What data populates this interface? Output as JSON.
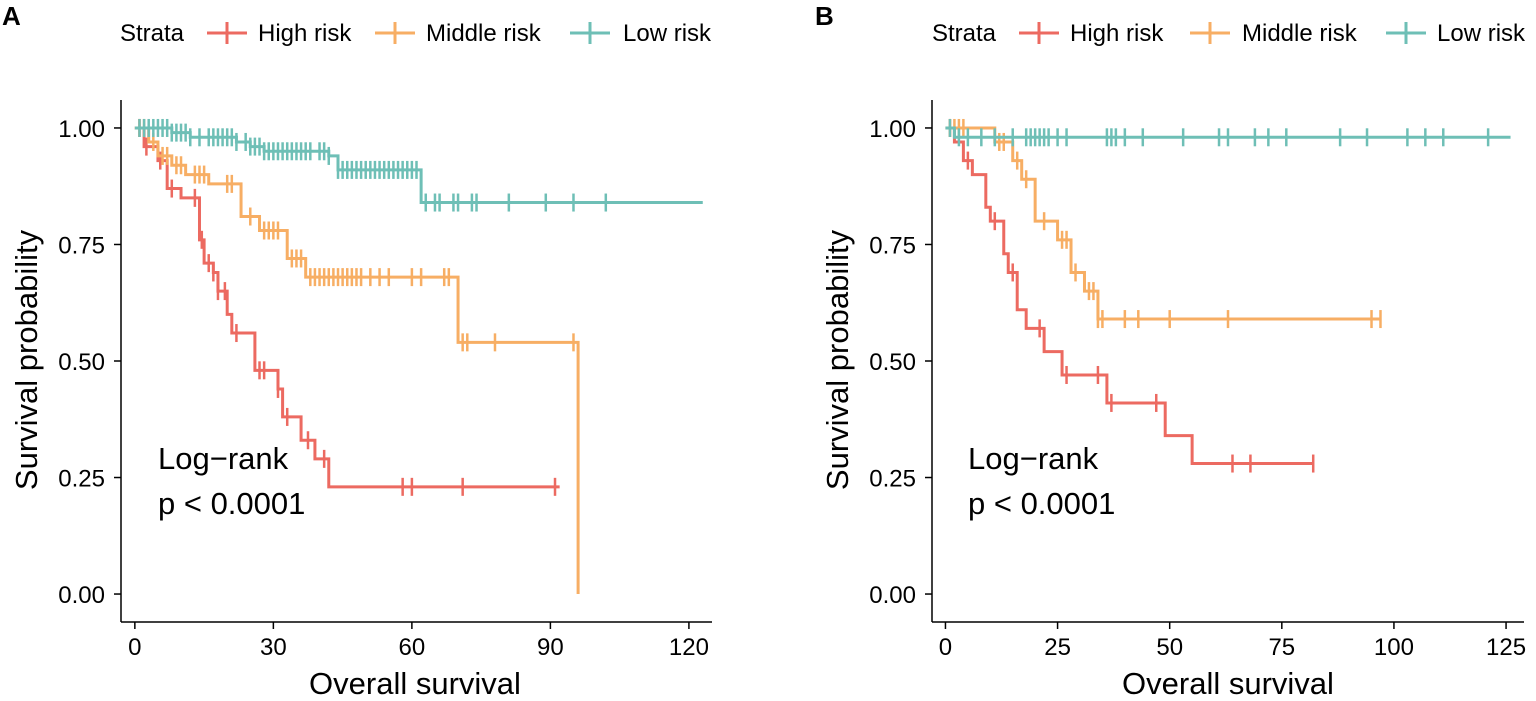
{
  "figure": {
    "panels": [
      "A",
      "B"
    ]
  },
  "colors": {
    "high": "#ec6a61",
    "middle": "#f7ae64",
    "low": "#6ebfb6",
    "axis": "#000000"
  },
  "chart_data": [
    {
      "type": "line",
      "panel_label": "A",
      "legend_title": "Strata",
      "xlabel": "Overall survival",
      "ylabel": "Survival probability",
      "xlim": [
        -3,
        125
      ],
      "ylim": [
        -0.06,
        1.06
      ],
      "xticks": [
        0,
        30,
        60,
        90,
        120
      ],
      "yticks": [
        0,
        0.25,
        0.5,
        0.75,
        1
      ],
      "ytick_labels": [
        "0.00",
        "0.25",
        "0.50",
        "0.75",
        "1.00"
      ],
      "annotation": [
        "Log−rank",
        "p < 0.0001"
      ],
      "series": [
        {
          "name": "High risk",
          "color_key": "high",
          "steps": [
            [
              0,
              1.0
            ],
            [
              2,
              0.96
            ],
            [
              5,
              0.93
            ],
            [
              7,
              0.87
            ],
            [
              10,
              0.85
            ],
            [
              14,
              0.76
            ],
            [
              15,
              0.71
            ],
            [
              17,
              0.69
            ],
            [
              18,
              0.65
            ],
            [
              20,
              0.6
            ],
            [
              21,
              0.56
            ],
            [
              26,
              0.48
            ],
            [
              31,
              0.44
            ],
            [
              32,
              0.38
            ],
            [
              36,
              0.33
            ],
            [
              39,
              0.29
            ],
            [
              42,
              0.23
            ],
            [
              92,
              0.23
            ]
          ],
          "censor_x": [
            1,
            2.5,
            5.5,
            8,
            13,
            14.5,
            16,
            17,
            18,
            19.5,
            22,
            27,
            28,
            31,
            33,
            37.5,
            41,
            58,
            60,
            71,
            91
          ]
        },
        {
          "name": "Middle risk",
          "color_key": "middle",
          "steps": [
            [
              0,
              1.0
            ],
            [
              3,
              0.97
            ],
            [
              5,
              0.94
            ],
            [
              8,
              0.92
            ],
            [
              11,
              0.9
            ],
            [
              16,
              0.88
            ],
            [
              23,
              0.81
            ],
            [
              27,
              0.78
            ],
            [
              33,
              0.72
            ],
            [
              37,
              0.68
            ],
            [
              70,
              0.54
            ],
            [
              96,
              0.54
            ],
            [
              96,
              0.0
            ]
          ],
          "censor_x": [
            1,
            2,
            4,
            6,
            7,
            9,
            10,
            13,
            14,
            15,
            20,
            21,
            25,
            28,
            29,
            30,
            31,
            34,
            35,
            36,
            38,
            39,
            40,
            41,
            42,
            43,
            44,
            45,
            46,
            47,
            48,
            49,
            51,
            53,
            55,
            60,
            62,
            67,
            68,
            71,
            72,
            78,
            95
          ]
        },
        {
          "name": "Low risk",
          "color_key": "low",
          "steps": [
            [
              0,
              1.0
            ],
            [
              8,
              0.99
            ],
            [
              12,
              0.98
            ],
            [
              22,
              0.97
            ],
            [
              25,
              0.96
            ],
            [
              28,
              0.95
            ],
            [
              42,
              0.94
            ],
            [
              44,
              0.91
            ],
            [
              62,
              0.84
            ],
            [
              123,
              0.84
            ]
          ],
          "censor_x": [
            1,
            2,
            3,
            4,
            5,
            6,
            7,
            8,
            9,
            10,
            11,
            12,
            14,
            16,
            17,
            18,
            19,
            20,
            21,
            22,
            24,
            25,
            26,
            27,
            28,
            29,
            30,
            31,
            32,
            33,
            34,
            35,
            36,
            37,
            38,
            40,
            41,
            42,
            44,
            45,
            46,
            47,
            48,
            49,
            50,
            51,
            52,
            53,
            54,
            55,
            56,
            57,
            58,
            59,
            60,
            61,
            63,
            65,
            66,
            69,
            70,
            73,
            74,
            81,
            89,
            95,
            102
          ]
        }
      ]
    },
    {
      "type": "line",
      "panel_label": "B",
      "legend_title": "Strata",
      "xlabel": "Overall survival",
      "ylabel": "Survival probability",
      "xlim": [
        -3,
        129
      ],
      "ylim": [
        -0.06,
        1.06
      ],
      "xticks": [
        0,
        25,
        50,
        75,
        100,
        125
      ],
      "yticks": [
        0,
        0.25,
        0.5,
        0.75,
        1
      ],
      "ytick_labels": [
        "0.00",
        "0.25",
        "0.50",
        "0.75",
        "1.00"
      ],
      "annotation": [
        "Log−rank",
        "p < 0.0001"
      ],
      "series": [
        {
          "name": "High risk",
          "color_key": "high",
          "steps": [
            [
              0,
              1.0
            ],
            [
              2,
              0.97
            ],
            [
              4,
              0.93
            ],
            [
              6,
              0.9
            ],
            [
              9,
              0.83
            ],
            [
              10,
              0.8
            ],
            [
              13,
              0.73
            ],
            [
              14,
              0.69
            ],
            [
              16,
              0.61
            ],
            [
              18,
              0.57
            ],
            [
              22,
              0.52
            ],
            [
              26,
              0.47
            ],
            [
              36,
              0.41
            ],
            [
              49,
              0.34
            ],
            [
              55,
              0.28
            ],
            [
              82,
              0.28
            ]
          ],
          "censor_x": [
            1,
            5,
            11,
            15,
            21,
            27,
            34,
            37,
            47,
            64,
            68,
            82
          ]
        },
        {
          "name": "Middle risk",
          "color_key": "middle",
          "steps": [
            [
              0,
              1.0
            ],
            [
              11,
              0.97
            ],
            [
              15,
              0.93
            ],
            [
              17,
              0.89
            ],
            [
              20,
              0.8
            ],
            [
              25,
              0.76
            ],
            [
              28,
              0.69
            ],
            [
              31,
              0.65
            ],
            [
              34,
              0.59
            ],
            [
              97,
              0.59
            ]
          ],
          "censor_x": [
            1,
            2,
            3,
            4,
            12,
            13,
            16,
            18,
            22,
            26,
            27,
            29,
            32,
            33,
            34,
            35,
            40,
            43,
            50,
            63,
            95,
            97
          ]
        },
        {
          "name": "Low risk",
          "color_key": "low",
          "steps": [
            [
              0,
              1.0
            ],
            [
              2,
              0.98
            ],
            [
              126,
              0.98
            ]
          ],
          "censor_x": [
            1,
            3,
            5,
            8,
            11,
            15,
            18,
            19,
            20,
            21,
            22,
            23,
            25,
            27,
            36,
            37,
            38,
            40,
            44,
            53,
            61,
            63,
            69,
            72,
            76,
            88,
            94,
            103,
            107,
            111,
            121
          ]
        }
      ]
    }
  ]
}
